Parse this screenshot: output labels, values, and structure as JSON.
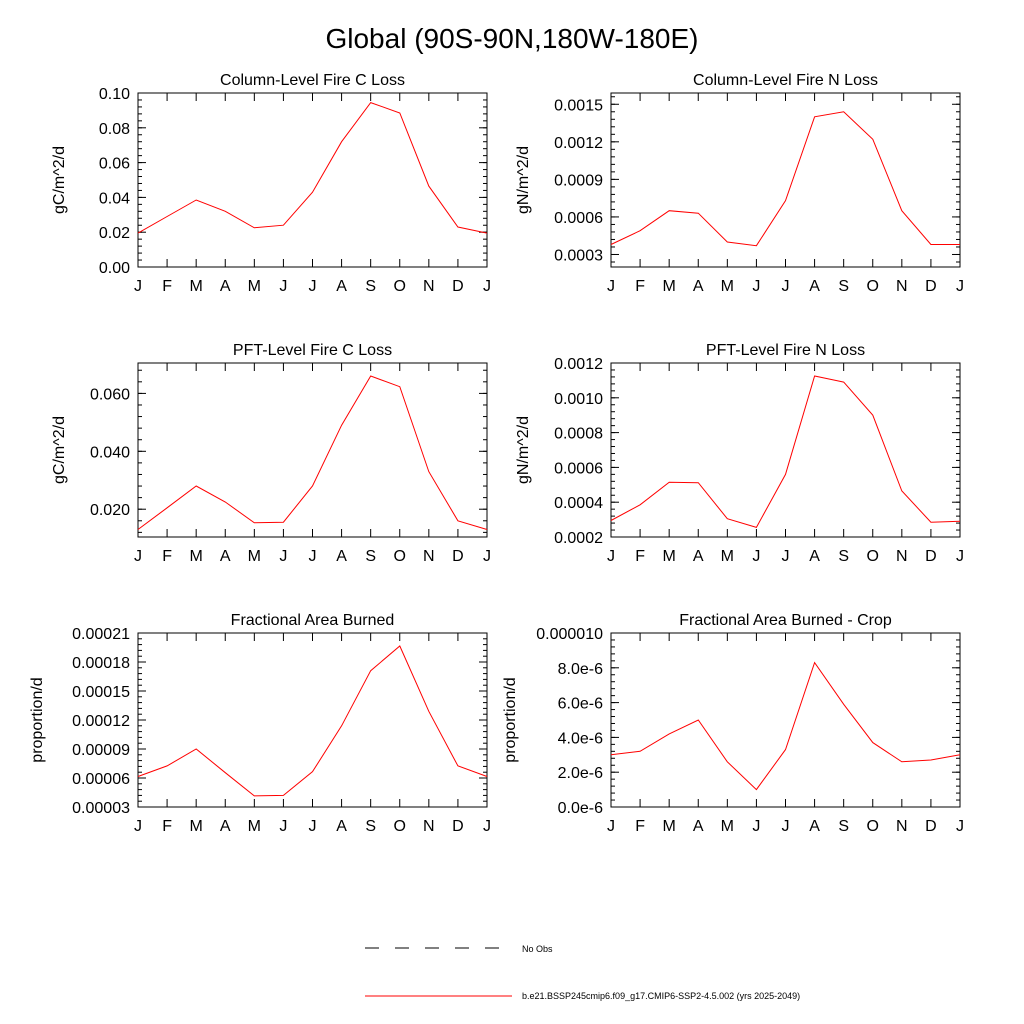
{
  "figure": {
    "title": "Global (90S-90N,180W-180E)"
  },
  "legend": {
    "entries": [
      {
        "label": "No Obs",
        "style": "dashed",
        "color": "#000000"
      },
      {
        "label": "b.e21.BSSP245cmip6.f09_g17.CMIP6-SSP2-4.5.002 (yrs 2025-2049)",
        "style": "solid",
        "color": "#ff0000"
      }
    ]
  },
  "chart_data": [
    {
      "type": "line",
      "title": "Column-Level Fire C Loss",
      "ylabel": "gC/m^2/d",
      "categories": [
        "J",
        "F",
        "M",
        "A",
        "M",
        "J",
        "J",
        "A",
        "S",
        "O",
        "N",
        "D",
        "J"
      ],
      "ylim": [
        0.0,
        0.1
      ],
      "yticks": [
        "0.00",
        "0.02",
        "0.04",
        "0.06",
        "0.08",
        "0.10"
      ],
      "ytick_values": [
        0.0,
        0.02,
        0.04,
        0.06,
        0.08,
        0.1
      ],
      "series": [
        {
          "color": "#ff0000",
          "values": [
            0.0195,
            0.029,
            0.0385,
            0.032,
            0.0225,
            0.024,
            0.043,
            0.072,
            0.0945,
            0.0885,
            0.0465,
            0.023,
            0.0195
          ]
        }
      ]
    },
    {
      "type": "line",
      "title": "Column-Level Fire N Loss",
      "ylabel": "gN/m^2/d",
      "categories": [
        "J",
        "F",
        "M",
        "A",
        "M",
        "J",
        "J",
        "A",
        "S",
        "O",
        "N",
        "D",
        "J"
      ],
      "ylim": [
        0.0002,
        0.00159
      ],
      "yticks": [
        "0.0003",
        "0.0006",
        "0.0009",
        "0.0012",
        "0.0015"
      ],
      "ytick_values": [
        0.0003,
        0.0006,
        0.0009,
        0.0012,
        0.0015
      ],
      "series": [
        {
          "color": "#ff0000",
          "values": [
            0.00038,
            0.00049,
            0.00065,
            0.00063,
            0.0004,
            0.00037,
            0.00073,
            0.0014,
            0.00144,
            0.00122,
            0.00065,
            0.00038,
            0.00038
          ]
        }
      ]
    },
    {
      "type": "line",
      "title": "PFT-Level Fire C Loss",
      "ylabel": "gC/m^2/d",
      "categories": [
        "J",
        "F",
        "M",
        "A",
        "M",
        "J",
        "J",
        "A",
        "S",
        "O",
        "N",
        "D",
        "J"
      ],
      "ylim": [
        0.0104,
        0.0705
      ],
      "yticks": [
        "0.020",
        "0.040",
        "0.060"
      ],
      "ytick_values": [
        0.02,
        0.04,
        0.06
      ],
      "series": [
        {
          "color": "#ff0000",
          "values": [
            0.013,
            0.0205,
            0.028,
            0.0225,
            0.0153,
            0.0155,
            0.028,
            0.049,
            0.066,
            0.0623,
            0.033,
            0.016,
            0.013
          ]
        }
      ]
    },
    {
      "type": "line",
      "title": "PFT-Level Fire N Loss",
      "ylabel": "gN/m^2/d",
      "categories": [
        "J",
        "F",
        "M",
        "A",
        "M",
        "J",
        "J",
        "A",
        "S",
        "O",
        "N",
        "D",
        "J"
      ],
      "ylim": [
        0.0002,
        0.0012
      ],
      "yticks": [
        "0.0002",
        "0.0004",
        "0.0006",
        "0.0008",
        "0.0010",
        "0.0012"
      ],
      "ytick_values": [
        0.0002,
        0.0004,
        0.0006,
        0.0008,
        0.001,
        0.0012
      ],
      "series": [
        {
          "color": "#ff0000",
          "values": [
            0.000295,
            0.000385,
            0.000515,
            0.000512,
            0.000305,
            0.000255,
            0.00056,
            0.001125,
            0.00109,
            0.0009,
            0.000465,
            0.000285,
            0.00029
          ]
        }
      ]
    },
    {
      "type": "line",
      "title": "Fractional Area Burned",
      "ylabel": "proportion/d",
      "categories": [
        "J",
        "F",
        "M",
        "A",
        "M",
        "J",
        "J",
        "A",
        "S",
        "O",
        "N",
        "D",
        "J"
      ],
      "ylim": [
        3e-05,
        0.00021
      ],
      "yticks": [
        "0.00003",
        "0.00006",
        "0.00009",
        "0.00012",
        "0.00015",
        "0.00018",
        "0.00021"
      ],
      "ytick_values": [
        3e-05,
        6e-05,
        9e-05,
        0.00012,
        0.00015,
        0.00018,
        0.00021
      ],
      "series": [
        {
          "color": "#ff0000",
          "values": [
            6.15e-05,
            7.25e-05,
            9e-05,
            6.55e-05,
            4.15e-05,
            4.2e-05,
            6.65e-05,
            0.000114,
            0.000171,
            0.0001965,
            0.000129,
            7.25e-05,
            6.15e-05
          ]
        }
      ]
    },
    {
      "type": "line",
      "title": "Fractional Area Burned - Crop",
      "ylabel": "proportion/d",
      "categories": [
        "J",
        "F",
        "M",
        "A",
        "M",
        "J",
        "J",
        "A",
        "S",
        "O",
        "N",
        "D",
        "J"
      ],
      "ylim": [
        0.0,
        1e-05
      ],
      "yticks": [
        "0.0e-6",
        "2.0e-6",
        "4.0e-6",
        "6.0e-6",
        "8.0e-6",
        "0.000010"
      ],
      "ytick_values": [
        0.0,
        2e-06,
        4e-06,
        6e-06,
        8e-06,
        1e-05
      ],
      "series": [
        {
          "color": "#ff0000",
          "values": [
            3e-06,
            3.2e-06,
            4.2e-06,
            5e-06,
            2.6e-06,
            1e-06,
            3.3e-06,
            8.3e-06,
            5.9e-06,
            3.7e-06,
            2.6e-06,
            2.7e-06,
            3e-06
          ]
        }
      ]
    }
  ]
}
